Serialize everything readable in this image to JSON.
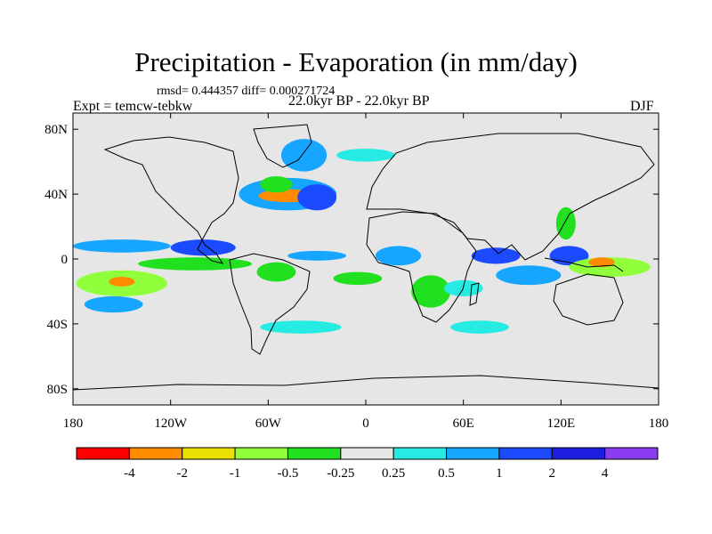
{
  "header": {
    "title": "Precipitation - Evaporation (in mm/day)",
    "stats": "rmsd= 0.444357  diff= 0.000271724",
    "experiment": "Expt = temcw-tebkw",
    "period": "22.0kyr BP - 22.0kyr BP",
    "season": "DJF"
  },
  "chart_data": {
    "type": "heatmap",
    "title": "Precipitation - Evaporation (in mm/day)",
    "x_axis": {
      "range": [
        -180,
        180
      ],
      "ticks": [
        -180,
        -120,
        -60,
        0,
        60,
        120,
        180
      ],
      "tick_labels": [
        "180",
        "120W",
        "60W",
        "0",
        "60E",
        "120E",
        "180"
      ]
    },
    "y_axis": {
      "range": [
        -90,
        90
      ],
      "ticks": [
        80,
        40,
        0,
        -40,
        -80
      ],
      "tick_labels": [
        "80N",
        "40N",
        "0",
        "40S",
        "80S"
      ]
    },
    "colorbar": {
      "colors": [
        "#ff0000",
        "#ff8c00",
        "#e8e000",
        "#90ff3c",
        "#20e020",
        "#e6e6e6",
        "#26ebe2",
        "#16a6ff",
        "#1b4aff",
        "#1e1ee0",
        "#8a3cf0"
      ],
      "boundaries": [
        "-4",
        "-2",
        "-1",
        "-0.5",
        "-0.25",
        "0.25",
        "0.5",
        "1",
        "2",
        "4"
      ],
      "labels": [
        "-4",
        "-2",
        "-1",
        "-0.5",
        "-0.25",
        "0.25",
        "0.5",
        "1",
        "2",
        "4"
      ]
    },
    "regions": [
      {
        "name": "n-atlantic-storm",
        "lon": -48,
        "lat": 40,
        "w": 30,
        "h": 10,
        "level": 7
      },
      {
        "name": "n-atlantic-dry",
        "lon": -48,
        "lat": 39,
        "w": 18,
        "h": 4,
        "level": 1
      },
      {
        "name": "n-atlantic-green",
        "lon": -55,
        "lat": 46,
        "w": 10,
        "h": 5,
        "level": 4
      },
      {
        "name": "ne-atlantic-wet",
        "lon": -30,
        "lat": 38,
        "w": 12,
        "h": 8,
        "level": 8
      },
      {
        "name": "greenland-sea",
        "lon": -38,
        "lat": 64,
        "w": 14,
        "h": 10,
        "level": 7
      },
      {
        "name": "norway-sea",
        "lon": 0,
        "lat": 64,
        "w": 18,
        "h": 4,
        "level": 6
      },
      {
        "name": "nw-pacific-itcz",
        "lon": -150,
        "lat": 8,
        "w": 30,
        "h": 4,
        "level": 7
      },
      {
        "name": "e-pacific-itcz",
        "lon": -100,
        "lat": 7,
        "w": 20,
        "h": 5,
        "level": 8
      },
      {
        "name": "e-pacific-dry",
        "lon": -105,
        "lat": -3,
        "w": 35,
        "h": 4,
        "level": 4
      },
      {
        "name": "s-pacific-dry",
        "lon": -150,
        "lat": -15,
        "w": 28,
        "h": 8,
        "level": 3
      },
      {
        "name": "s-pacific-core",
        "lon": -150,
        "lat": -14,
        "w": 8,
        "h": 3,
        "level": 1
      },
      {
        "name": "s-pacific-wet",
        "lon": -155,
        "lat": -28,
        "w": 18,
        "h": 5,
        "level": 7
      },
      {
        "name": "atlantic-itcz",
        "lon": -30,
        "lat": 2,
        "w": 18,
        "h": 3,
        "level": 7
      },
      {
        "name": "amazon-dry",
        "lon": -55,
        "lat": -8,
        "w": 12,
        "h": 6,
        "level": 4
      },
      {
        "name": "s-atlantic-dry",
        "lon": -5,
        "lat": -12,
        "w": 15,
        "h": 4,
        "level": 4
      },
      {
        "name": "africa-wet",
        "lon": 20,
        "lat": 2,
        "w": 14,
        "h": 6,
        "level": 7
      },
      {
        "name": "se-africa-dry",
        "lon": 40,
        "lat": -20,
        "w": 12,
        "h": 10,
        "level": 4
      },
      {
        "name": "w-indian-wet",
        "lon": 60,
        "lat": -18,
        "w": 12,
        "h": 5,
        "level": 6
      },
      {
        "name": "indian-itcz",
        "lon": 80,
        "lat": 2,
        "w": 15,
        "h": 5,
        "level": 8
      },
      {
        "name": "e-indian-wet",
        "lon": 100,
        "lat": -10,
        "w": 20,
        "h": 6,
        "level": 7
      },
      {
        "name": "maritime-wet",
        "lon": 125,
        "lat": 2,
        "w": 12,
        "h": 6,
        "level": 8
      },
      {
        "name": "w-pacific-dry",
        "lon": 150,
        "lat": -5,
        "w": 25,
        "h": 6,
        "level": 3
      },
      {
        "name": "w-pacific-core",
        "lon": 145,
        "lat": -2,
        "w": 8,
        "h": 3,
        "level": 1
      },
      {
        "name": "china-dry",
        "lon": 123,
        "lat": 22,
        "w": 6,
        "h": 10,
        "level": 4
      },
      {
        "name": "southern-ocean",
        "lon": -40,
        "lat": -42,
        "w": 25,
        "h": 4,
        "level": 6
      },
      {
        "name": "s-indian-ocean",
        "lon": 70,
        "lat": -42,
        "w": 18,
        "h": 4,
        "level": 6
      }
    ]
  }
}
